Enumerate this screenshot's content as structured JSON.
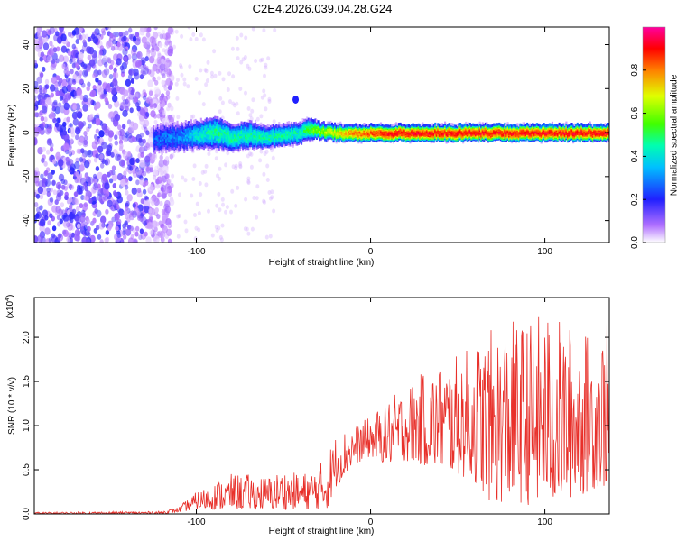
{
  "figure": {
    "title": "C2E4.2026.039.04.28.G24"
  },
  "chart_data": [
    {
      "type": "heatmap",
      "title": "C2E4.2026.039.04.28.G24",
      "xlabel": "Height of straight line (km)",
      "ylabel": "Frequency (Hz)",
      "xlim": [
        -193,
        137
      ],
      "ylim": [
        -50,
        48
      ],
      "xticks": [
        -100,
        0,
        100
      ],
      "xtick_labels": [
        "-100",
        "0",
        "100"
      ],
      "yticks": [
        -40,
        -20,
        0,
        20,
        40
      ],
      "ytick_labels": [
        "-40",
        "-20",
        "0",
        "20",
        "40"
      ],
      "colorbar": {
        "label": "Normalized spectral amplitude",
        "range": [
          0,
          1
        ],
        "ticks": [
          0.0,
          0.2,
          0.4,
          0.6,
          0.8
        ],
        "tick_labels": [
          "0.0",
          "0.2",
          "0.4",
          "0.6",
          "0.8"
        ],
        "colormap": [
          "#ffffff",
          "#8a2be2",
          "#0000ff",
          "#00ffff",
          "#00ff00",
          "#ffff00",
          "#ff0000",
          "#ff00aa"
        ]
      },
      "noise_region_x": [
        -193,
        -120
      ],
      "band": {
        "x": [
          -125,
          -110,
          -100,
          -90,
          -80,
          -70,
          -60,
          -50,
          -40,
          -35,
          -30,
          -20,
          -10,
          0,
          10,
          20,
          30,
          40,
          50,
          60,
          70,
          80,
          90,
          100,
          110,
          120,
          130,
          137
        ],
        "center_hz": [
          -3,
          -2,
          -1,
          0,
          -2,
          -1,
          -2,
          -1,
          0,
          2,
          1,
          0,
          0,
          0,
          0,
          0,
          0,
          0,
          0,
          0,
          0,
          0,
          0,
          0,
          0,
          0,
          0,
          0
        ],
        "half_width_hz": [
          5,
          5,
          5,
          6,
          5,
          5,
          4,
          4,
          4,
          4,
          3,
          3,
          3,
          3,
          3,
          3,
          3,
          3,
          3,
          3,
          3,
          3,
          3,
          3,
          3,
          3,
          3,
          3
        ],
        "peak_amplitude": [
          0.25,
          0.3,
          0.4,
          0.45,
          0.45,
          0.45,
          0.45,
          0.45,
          0.45,
          0.55,
          0.6,
          0.7,
          0.8,
          0.85,
          0.9,
          0.9,
          0.9,
          0.9,
          0.9,
          0.9,
          0.9,
          0.9,
          0.9,
          0.9,
          0.9,
          0.9,
          0.9,
          0.9
        ]
      },
      "isolated_blob": {
        "x": -43,
        "y": 15
      }
    },
    {
      "type": "line",
      "xlabel": "Height of straight line (km)",
      "ylabel": "SNR (10 * v/v)",
      "y_multiplier_label": "(x10",
      "y_multiplier_exp": "4",
      "y_multiplier_close": ")",
      "xlim": [
        -193,
        137
      ],
      "ylim": [
        0,
        2.45
      ],
      "xticks": [
        -100,
        0,
        100
      ],
      "xtick_labels": [
        "-100",
        "0",
        "100"
      ],
      "yticks": [
        0.0,
        0.5,
        1.0,
        1.5,
        2.0
      ],
      "ytick_labels": [
        "0.0",
        "0.5",
        "1.0",
        "1.5",
        "2.0"
      ],
      "color": "#e8302a",
      "envelope": {
        "x": [
          -193,
          -120,
          -110,
          -100,
          -90,
          -80,
          -70,
          -60,
          -50,
          -40,
          -30,
          -25,
          -20,
          -10,
          0,
          10,
          20,
          30,
          40,
          50,
          60,
          70,
          80,
          90,
          100,
          110,
          120,
          130,
          137
        ],
        "low": [
          0.0,
          0.0,
          0.02,
          0.05,
          0.05,
          0.05,
          0.05,
          0.05,
          0.05,
          0.05,
          0.05,
          0.05,
          0.3,
          0.55,
          0.65,
          0.55,
          0.6,
          0.55,
          0.5,
          0.45,
          0.35,
          0.1,
          0.15,
          0.1,
          0.1,
          0.15,
          0.2,
          0.3,
          0.3
        ],
        "high": [
          0.02,
          0.03,
          0.08,
          0.25,
          0.35,
          0.45,
          0.45,
          0.42,
          0.5,
          0.45,
          0.55,
          0.7,
          0.9,
          1.0,
          1.1,
          1.3,
          1.45,
          1.6,
          1.7,
          1.8,
          1.95,
          2.1,
          2.2,
          2.2,
          2.3,
          2.2,
          2.1,
          2.0,
          2.25
        ]
      }
    }
  ]
}
